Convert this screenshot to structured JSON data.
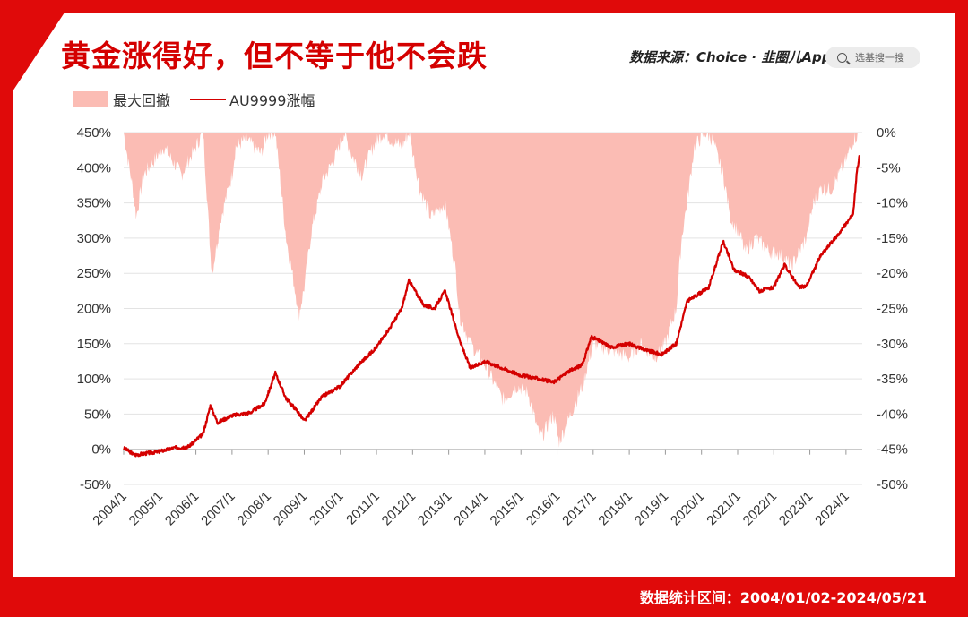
{
  "header": {
    "title": "黄金涨得好，但不等于他不会跌",
    "source": "数据来源：Choice · 韭圈儿App",
    "search_placeholder": "选基搜一搜"
  },
  "footer": {
    "range_text": "数据统计区间：2004/01/02-2024/05/21"
  },
  "colors": {
    "accent": "#e00a0a",
    "line": "#d40000",
    "drawdown": "#fbbcb4"
  },
  "chart_data": {
    "type": "line",
    "legend": [
      {
        "name": "最大回撤",
        "kind": "area"
      },
      {
        "name": "AU9999涨幅",
        "kind": "line"
      }
    ],
    "x_categories": [
      "2004/1",
      "2005/1",
      "2006/1",
      "2007/1",
      "2008/1",
      "2009/1",
      "2010/1",
      "2011/1",
      "2012/1",
      "2013/1",
      "2014/1",
      "2015/1",
      "2016/1",
      "2017/1",
      "2018/1",
      "2019/1",
      "2020/1",
      "2021/1",
      "2022/1",
      "2023/1",
      "2024/1"
    ],
    "y_left": {
      "ticks": [
        "450%",
        "400%",
        "350%",
        "300%",
        "250%",
        "200%",
        "150%",
        "100%",
        "50%",
        "0%",
        "-50%"
      ],
      "range": [
        -50,
        450
      ]
    },
    "y_right": {
      "ticks": [
        "0%",
        "-5%",
        "-10%",
        "-15%",
        "-20%",
        "-25%",
        "-30%",
        "-35%",
        "-40%",
        "-45%",
        "-50%"
      ],
      "range": [
        -50,
        0
      ]
    },
    "grid": true,
    "series": [
      {
        "name": "AU9999涨幅",
        "axis": "left",
        "unit": "%",
        "t": [
          2004.0,
          2004.3,
          2004.6,
          2005.0,
          2005.4,
          2005.8,
          2006.2,
          2006.4,
          2006.6,
          2007.0,
          2007.5,
          2007.9,
          2008.2,
          2008.5,
          2008.8,
          2009.0,
          2009.5,
          2010.0,
          2010.5,
          2011.0,
          2011.4,
          2011.7,
          2011.9,
          2012.3,
          2012.6,
          2012.9,
          2013.3,
          2013.6,
          2014.0,
          2014.5,
          2015.0,
          2015.5,
          2015.9,
          2016.3,
          2016.7,
          2016.95,
          2017.5,
          2018.0,
          2018.5,
          2018.9,
          2019.3,
          2019.6,
          2019.9,
          2020.2,
          2020.6,
          2020.9,
          2021.3,
          2021.6,
          2022.0,
          2022.3,
          2022.7,
          2022.9,
          2023.3,
          2023.7,
          2024.0,
          2024.2,
          2024.3,
          2024.38
        ],
        "values": [
          2,
          -8,
          -6,
          -3,
          2,
          4,
          22,
          62,
          38,
          48,
          52,
          65,
          108,
          72,
          55,
          40,
          75,
          90,
          120,
          145,
          175,
          200,
          240,
          205,
          200,
          225,
          155,
          115,
          125,
          115,
          105,
          100,
          95,
          110,
          120,
          160,
          145,
          150,
          140,
          135,
          150,
          210,
          220,
          230,
          295,
          255,
          245,
          225,
          230,
          262,
          230,
          232,
          275,
          300,
          320,
          335,
          395,
          418
        ]
      },
      {
        "name": "最大回撤",
        "axis": "right",
        "unit": "%",
        "t": [
          2004.0,
          2004.25,
          2004.35,
          2004.55,
          2004.85,
          2005.1,
          2005.6,
          2005.9,
          2006.2,
          2006.4,
          2006.45,
          2006.7,
          2007.0,
          2007.1,
          2007.4,
          2007.8,
          2008.0,
          2008.2,
          2008.5,
          2008.8,
          2008.85,
          2009.0,
          2009.2,
          2009.5,
          2009.9,
          2010.1,
          2010.3,
          2010.6,
          2010.9,
          2011.2,
          2011.4,
          2011.7,
          2011.9,
          2012.2,
          2012.5,
          2012.9,
          2013.2,
          2013.3,
          2013.6,
          2014.0,
          2014.5,
          2014.9,
          2015.2,
          2015.5,
          2015.6,
          2015.9,
          2016.05,
          2016.3,
          2016.7,
          2017.0,
          2017.5,
          2018.0,
          2018.3,
          2018.7,
          2019.0,
          2019.3,
          2019.45,
          2019.65,
          2019.8,
          2020.1,
          2020.3,
          2020.6,
          2020.8,
          2021.1,
          2021.2,
          2021.5,
          2021.9,
          2022.1,
          2022.3,
          2022.5,
          2022.7,
          2022.9,
          2023.1,
          2023.3,
          2023.6,
          2023.8,
          2024.0,
          2024.2,
          2024.38
        ],
        "values": [
          0,
          -8,
          -12,
          -6,
          -4,
          -2,
          -6,
          -3,
          0,
          -17,
          -20,
          -12,
          -6,
          -2,
          -1,
          -3,
          0,
          0,
          -15,
          -24,
          -26,
          -22,
          -14,
          -7,
          -3,
          0,
          -3,
          -6,
          -2,
          0,
          -1,
          -2,
          0,
          -8,
          -12,
          -10,
          -20,
          -26,
          -30,
          -33,
          -38,
          -36,
          -37,
          -43,
          -43,
          -40,
          -44,
          -41,
          -36,
          -30,
          -31,
          -32,
          -30,
          -32,
          -30,
          -25,
          -15,
          -8,
          -2,
          0,
          -1,
          -6,
          -12,
          -15,
          -17,
          -15,
          -17,
          -17,
          -18,
          -19,
          -17,
          -15,
          -10,
          -8,
          -8,
          -6,
          -4,
          -1,
          0
        ]
      }
    ]
  }
}
